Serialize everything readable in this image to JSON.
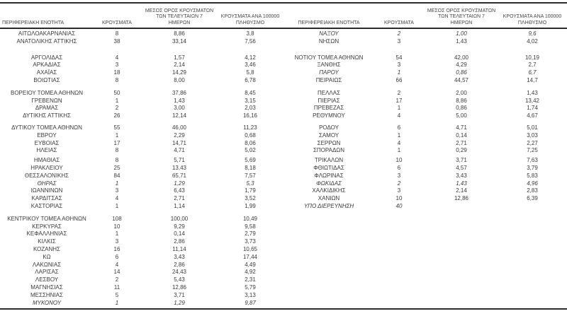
{
  "colors": {
    "text": "#3a3a3a",
    "rule": "#2b2b2b",
    "background": "#ffffff"
  },
  "table": {
    "headers": {
      "region": "ΠΕΡΙΦΕΡΕΙΑΚΗ ΕΝΟΤΗΤΑ",
      "cases": "ΚΡΟΥΣΜΑΤΑ",
      "avg7_line1": "ΜΕΣΟΣ ΟΡΟΣ ΚΡΟΥΣΜΑΤΩΝ",
      "avg7_line2": "ΤΩΝ ΤΕΛΕΥΤΑΙΩΝ 7",
      "avg7_line3": "ΗΜΕΡΩΝ",
      "per100k_line1": "ΚΡΟΥΣΜΑΤΑ ΑΝΑ 100000",
      "per100k_line2": "ΠΛΗΘΥΣΜΟ"
    },
    "left_rows": [
      {
        "region": "ΑΙΤΩΛΟΑΚΑΡΝΑΝΙΑΣ",
        "cases": "8",
        "avg7": "8,86",
        "per100k": "3,8"
      },
      {
        "region": "ΑΝΑΤΟΛΙΚΗΣ ΑΤΤΙΚΗΣ",
        "cases": "38",
        "avg7": "33,14",
        "per100k": "7,56"
      },
      {
        "spacer": 12
      },
      {
        "region": "ΑΡΓΟΛΙΔΑΣ",
        "cases": "4",
        "avg7": "1,57",
        "per100k": "4,12"
      },
      {
        "region": "ΑΡΚΑΔΙΑΣ",
        "cases": "3",
        "avg7": "2,14",
        "per100k": "3,46"
      },
      {
        "region": "ΑΧΑΪΑΣ",
        "cases": "18",
        "avg7": "14,29",
        "per100k": "5,8"
      },
      {
        "region": "ΒΟΙΩΤΙΑΣ",
        "cases": "8",
        "avg7": "8,00",
        "per100k": "6,78"
      },
      {
        "spacer": 7
      },
      {
        "region": "ΒΟΡΕΙΟΥ ΤΟΜΕΑ ΑΘΗΝΩΝ",
        "cases": "50",
        "avg7": "37,86",
        "per100k": "8,45"
      },
      {
        "region": "ΓΡΕΒΕΝΩΝ",
        "cases": "1",
        "avg7": "1,43",
        "per100k": "3,15"
      },
      {
        "region": "ΔΡΑΜΑΣ",
        "cases": "2",
        "avg7": "3,00",
        "per100k": "2,03"
      },
      {
        "region": "ΔΥΤΙΚΗΣ ΑΤΤΙΚΗΣ",
        "cases": "26",
        "avg7": "12,14",
        "per100k": "16,16"
      },
      {
        "spacer": 6
      },
      {
        "region": "ΔΥΤΙΚΟΥ ΤΟΜΕΑ ΑΘΗΝΩΝ",
        "cases": "55",
        "avg7": "46,00",
        "per100k": "11,23"
      },
      {
        "region": "ΕΒΡΟΥ",
        "cases": "1",
        "avg7": "2,29",
        "per100k": "0,68"
      },
      {
        "region": "ΕΥΒΟΙΑΣ",
        "cases": "17",
        "avg7": "14,71",
        "per100k": "8,06"
      },
      {
        "region": "ΗΛΕΙΑΣ",
        "cases": "8",
        "avg7": "4,71",
        "per100k": "5,02"
      },
      {
        "spacer": 3
      },
      {
        "region": "ΗΜΑΘΙΑΣ",
        "cases": "8",
        "avg7": "5,71",
        "per100k": "5,69"
      },
      {
        "region": "ΗΡΑΚΛΕΙΟΥ",
        "cases": "25",
        "avg7": "13,43",
        "per100k": "8,18"
      },
      {
        "region": "ΘΕΣΣΑΛΟΝΙΚΗΣ",
        "cases": "84",
        "avg7": "65,71",
        "per100k": "7,57"
      },
      {
        "region": "ΘΗΡΑΣ",
        "cases": "1",
        "avg7": "1,29",
        "per100k": "5,3",
        "italic": true
      },
      {
        "region": "ΙΩΑΝΝΙΝΩΝ",
        "cases": "3",
        "avg7": "6,43",
        "per100k": "1,79"
      },
      {
        "region": "ΚΑΡΔΙΤΣΑΣ",
        "cases": "4",
        "avg7": "2,71",
        "per100k": "3,52"
      },
      {
        "region": "ΚΑΣΤΟΡΙΑΣ",
        "cases": "1",
        "avg7": "1,14",
        "per100k": "1,99"
      },
      {
        "spacer": 7
      },
      {
        "region": "ΚΕΝΤΡΙΚΟΥ ΤΟΜΕΑ ΑΘΗΝΩΝ",
        "cases": "108",
        "avg7": "100,00",
        "per100k": "10,49"
      },
      {
        "region": "ΚΕΡΚΥΡΑΣ",
        "cases": "10",
        "avg7": "9,29",
        "per100k": "9,58"
      },
      {
        "region": "ΚΕΦΑΛΛΗΝΙΑΣ",
        "cases": "1",
        "avg7": "0,14",
        "per100k": "2,79"
      },
      {
        "region": "ΚΙΛΚΙΣ",
        "cases": "3",
        "avg7": "2,86",
        "per100k": "3,73"
      },
      {
        "region": "ΚΟΖΑΝΗΣ",
        "cases": "16",
        "avg7": "11,14",
        "per100k": "10,65"
      },
      {
        "region": "ΚΩ",
        "cases": "6",
        "avg7": "3,43",
        "per100k": "17,44"
      },
      {
        "region": "ΛΑΚΩΝΙΑΣ",
        "cases": "4",
        "avg7": "2,86",
        "per100k": "4,49"
      },
      {
        "region": "ΛΑΡΙΣΑΣ",
        "cases": "14",
        "avg7": "24,43",
        "per100k": "4,92"
      },
      {
        "region": "ΛΕΣΒΟΥ",
        "cases": "2",
        "avg7": "5,43",
        "per100k": "2,31"
      },
      {
        "region": "ΜΑΓΝΗΣΙΑΣ",
        "cases": "11",
        "avg7": "12,86",
        "per100k": "5,79"
      },
      {
        "region": "ΜΕΣΣΗΝΙΑΣ",
        "cases": "5",
        "avg7": "3,71",
        "per100k": "3,13"
      },
      {
        "region": "ΜΥΚΟΝΟΥ",
        "cases": "1",
        "avg7": "1,29",
        "per100k": "9,87",
        "italic": true
      }
    ],
    "right_rows": [
      {
        "region": "ΝΑΞΟΥ",
        "cases": "2",
        "avg7": "1,00",
        "per100k": "9,6",
        "italic": true
      },
      {
        "region": "ΝΗΣΩΝ",
        "cases": "3",
        "avg7": "1,43",
        "per100k": "4,02"
      },
      {
        "spacer": 12
      },
      {
        "region": "ΝΟΤΙΟΥ ΤΟΜΕΑ ΑΘΗΝΩΝ",
        "cases": "54",
        "avg7": "42,00",
        "per100k": "10,19"
      },
      {
        "region": "ΞΑΝΘΗΣ",
        "cases": "3",
        "avg7": "4,29",
        "per100k": "2,7"
      },
      {
        "region": "ΠΑΡΟΥ",
        "cases": "1",
        "avg7": "0,86",
        "per100k": "6,7",
        "italic": true
      },
      {
        "region": "ΠΕΙΡΑΙΩΣ",
        "cases": "66",
        "avg7": "44,57",
        "per100k": "14,7"
      },
      {
        "spacer": 7
      },
      {
        "region": "ΠΕΛΛΑΣ",
        "cases": "2",
        "avg7": "2,00",
        "per100k": "1,43"
      },
      {
        "region": "ΠΙΕΡΙΑΣ",
        "cases": "17",
        "avg7": "8,86",
        "per100k": "13,42"
      },
      {
        "region": "ΠΡΕΒΕΖΑΣ",
        "cases": "1",
        "avg7": "0,86",
        "per100k": "1,74"
      },
      {
        "region": "ΡΕΘΥΜΝΟΥ",
        "cases": "4",
        "avg7": "5,00",
        "per100k": "4,67"
      },
      {
        "spacer": 6
      },
      {
        "region": "ΡΟΔΟΥ",
        "cases": "6",
        "avg7": "4,71",
        "per100k": "5,01"
      },
      {
        "region": "ΣΑΜΟΥ",
        "cases": "1",
        "avg7": "0,14",
        "per100k": "3,03"
      },
      {
        "region": "ΣΕΡΡΩΝ",
        "cases": "4",
        "avg7": "2,71",
        "per100k": "2,27"
      },
      {
        "region": "ΣΠΟΡΑΔΩΝ",
        "cases": "1",
        "avg7": "0,29",
        "per100k": "7,25"
      },
      {
        "spacer": 3
      },
      {
        "region": "ΤΡΙΚΑΛΩΝ",
        "cases": "10",
        "avg7": "3,71",
        "per100k": "7,63"
      },
      {
        "region": "ΦΘΙΩΤΙΔΑΣ",
        "cases": "6",
        "avg7": "4,57",
        "per100k": "3,79"
      },
      {
        "region": "ΦΛΩΡΙΝΑΣ",
        "cases": "3",
        "avg7": "3,43",
        "per100k": "5,83"
      },
      {
        "region": "ΦΩΚΙΔΑΣ",
        "cases": "2",
        "avg7": "1,43",
        "per100k": "4,96",
        "italic": true
      },
      {
        "region": "ΧΑΛΚΙΔΙΚΗΣ",
        "cases": "3",
        "avg7": "2,14",
        "per100k": "2,83"
      },
      {
        "region": "ΧΑΝΙΩΝ",
        "cases": "10",
        "avg7": "12,86",
        "per100k": "6,39"
      },
      {
        "region": "ΥΠΟ ΔΙΕΡΕΥΝΗΣΗ",
        "cases": "40",
        "avg7": "",
        "per100k": "",
        "italic": true
      }
    ]
  }
}
